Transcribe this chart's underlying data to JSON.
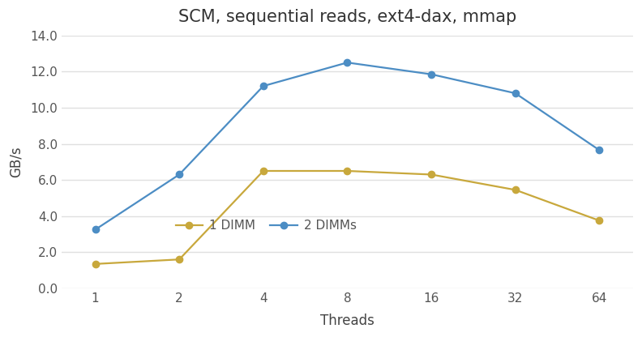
{
  "title": "SCM, sequential reads, ext4-dax, mmap",
  "xlabel": "Threads",
  "ylabel": "GB/s",
  "x_values": [
    1,
    2,
    4,
    8,
    16,
    32,
    64
  ],
  "series": [
    {
      "label": "1 DIMM",
      "color": "#c8a83c",
      "marker": "o",
      "values": [
        1.35,
        1.6,
        6.5,
        6.5,
        6.3,
        5.45,
        3.75
      ]
    },
    {
      "label": "2 DIMMs",
      "color": "#4c8dc4",
      "marker": "o",
      "values": [
        3.25,
        6.3,
        11.2,
        12.5,
        11.85,
        10.8,
        7.65
      ]
    }
  ],
  "ylim": [
    0,
    14.0
  ],
  "yticks": [
    0.0,
    2.0,
    4.0,
    6.0,
    8.0,
    10.0,
    12.0,
    14.0
  ],
  "background_color": "#ffffff",
  "grid_color": "#e0e0e0",
  "title_fontsize": 15,
  "axis_label_fontsize": 12,
  "tick_fontsize": 11,
  "legend_fontsize": 11,
  "line_width": 1.6,
  "marker_size": 6
}
